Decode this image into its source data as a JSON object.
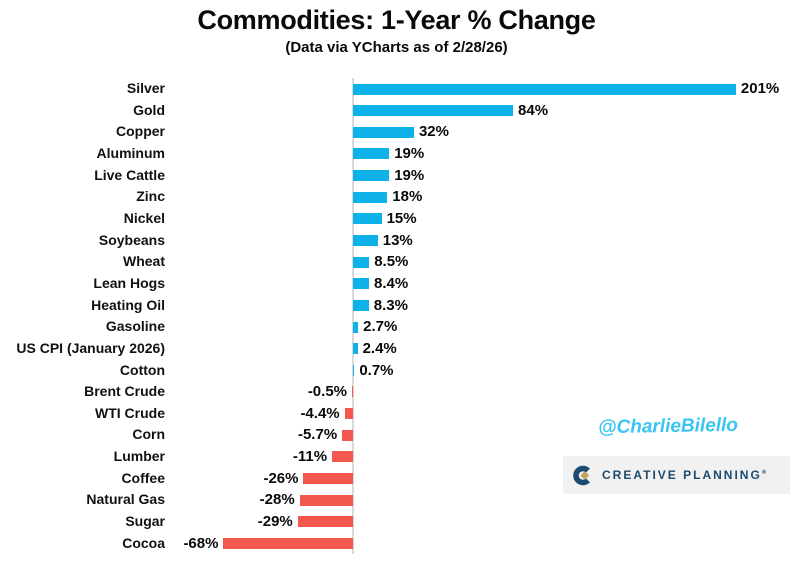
{
  "chart_data": {
    "type": "bar",
    "orientation": "horizontal",
    "title": "Commodities: 1-Year % Change",
    "subtitle": "(Data via YCharts as of 2/28/26)",
    "categories": [
      "Silver",
      "Gold",
      "Copper",
      "Aluminum",
      "Live Cattle",
      "Zinc",
      "Nickel",
      "Soybeans",
      "Wheat",
      "Lean Hogs",
      "Heating Oil",
      "Gasoline",
      "US CPI (January 2026)",
      "Cotton",
      "Brent Crude",
      "WTI Crude",
      "Corn",
      "Lumber",
      "Coffee",
      "Natural Gas",
      "Sugar",
      "Cocoa"
    ],
    "values": [
      201,
      84,
      32,
      19,
      19,
      18,
      15,
      13,
      8.5,
      8.4,
      8.3,
      2.7,
      2.4,
      0.7,
      -0.5,
      -4.4,
      -5.7,
      -11,
      -26,
      -28,
      -29,
      -68
    ],
    "value_labels": [
      "201%",
      "84%",
      "32%",
      "19%",
      "19%",
      "18%",
      "15%",
      "13%",
      "8.5%",
      "8.4%",
      "8.3%",
      "2.7%",
      "2.4%",
      "0.7%",
      "-0.5%",
      "-4.4%",
      "-5.7%",
      "-11%",
      "-26%",
      "-28%",
      "-29%",
      "-68%"
    ],
    "xlim": [
      -80,
      230
    ],
    "grid": false,
    "legend": false,
    "bar_color_positive": "#0fb2e8",
    "bar_color_negative": "#f4574e",
    "zero_axis_color": "#d9d9d9"
  },
  "watermarks": {
    "handle": "@CharlieBilello",
    "handle_color": "#38c5f3",
    "brand": "CREATIVE PLANNING",
    "brand_mark": "®",
    "brand_color": "#1b4a6e",
    "brand_diamond_color": "#c6a15f",
    "brand_bg_color": "#f1f1f1"
  }
}
